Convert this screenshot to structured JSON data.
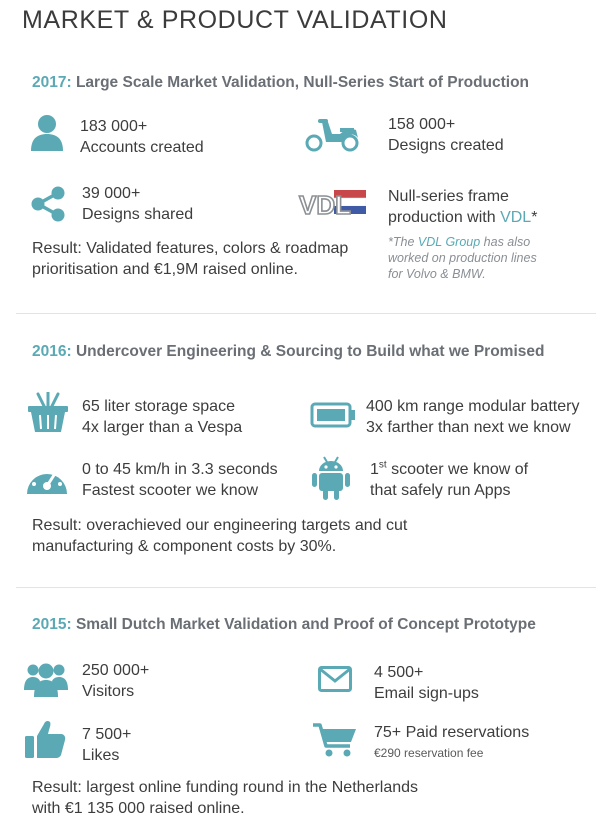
{
  "title": "MARKET & PRODUCT VALIDATION",
  "colors": {
    "accent": "#5aa9b4",
    "heading": "#6a6e75",
    "text": "#3d3d3d"
  },
  "sections": [
    {
      "year": "2017:",
      "heading": "Large Scale Market Validation, Null-Series Start of Production",
      "items": [
        {
          "icon": "user-icon",
          "line1": "183 000+",
          "line2": "Accounts created"
        },
        {
          "icon": "scooter-icon",
          "line1": "158 000+",
          "line2": "Designs created"
        },
        {
          "icon": "share-icon",
          "line1": "39 000+",
          "line2": "Designs shared"
        },
        {
          "icon": "vdl-logo",
          "line1": "Null-series frame",
          "line2_pre": "production with ",
          "line2_accent": "VDL",
          "line2_post": "*"
        }
      ],
      "note": {
        "pre": "*The ",
        "accent": "VDL Group",
        "line1_post": " has also",
        "line2": "worked on production lines",
        "line3": "for Volvo & BMW."
      },
      "result": [
        "Result: Validated features, colors & roadmap",
        "prioritisation and €1,9M raised online."
      ]
    },
    {
      "year": "2016:",
      "heading": "Undercover Engineering & Sourcing to Build what we Promised",
      "items": [
        {
          "icon": "basket-icon",
          "line1": "65 liter storage space",
          "line2": "4x larger than a Vespa"
        },
        {
          "icon": "battery-icon",
          "line1": "400 km range modular battery",
          "line2": "3x farther than next we know"
        },
        {
          "icon": "speedometer-icon",
          "line1": "0 to 45 km/h in 3.3 seconds",
          "line2": "Fastest scooter we know"
        },
        {
          "icon": "android-icon",
          "line1_pre": "1",
          "line1_sup": "st",
          "line1_post": " scooter we know of",
          "line2": "that safely run Apps"
        }
      ],
      "result": [
        "Result: overachieved our engineering targets and cut",
        "manufacturing & component costs by 30%."
      ]
    },
    {
      "year": "2015:",
      "heading": "Small Dutch Market Validation and Proof of Concept Prototype",
      "items": [
        {
          "icon": "users-icon",
          "line1": "250 000+",
          "line2": "Visitors"
        },
        {
          "icon": "envelope-icon",
          "line1": "4 500+",
          "line2": "Email sign-ups"
        },
        {
          "icon": "thumbs-up-icon",
          "line1": "7 500+",
          "line2": "Likes"
        },
        {
          "icon": "cart-icon",
          "line1": "75+ Paid reservations",
          "line2": "€290 reservation fee"
        }
      ],
      "result": [
        "Result: largest online funding round in the Netherlands",
        "with €1 135 000 raised online."
      ]
    }
  ]
}
